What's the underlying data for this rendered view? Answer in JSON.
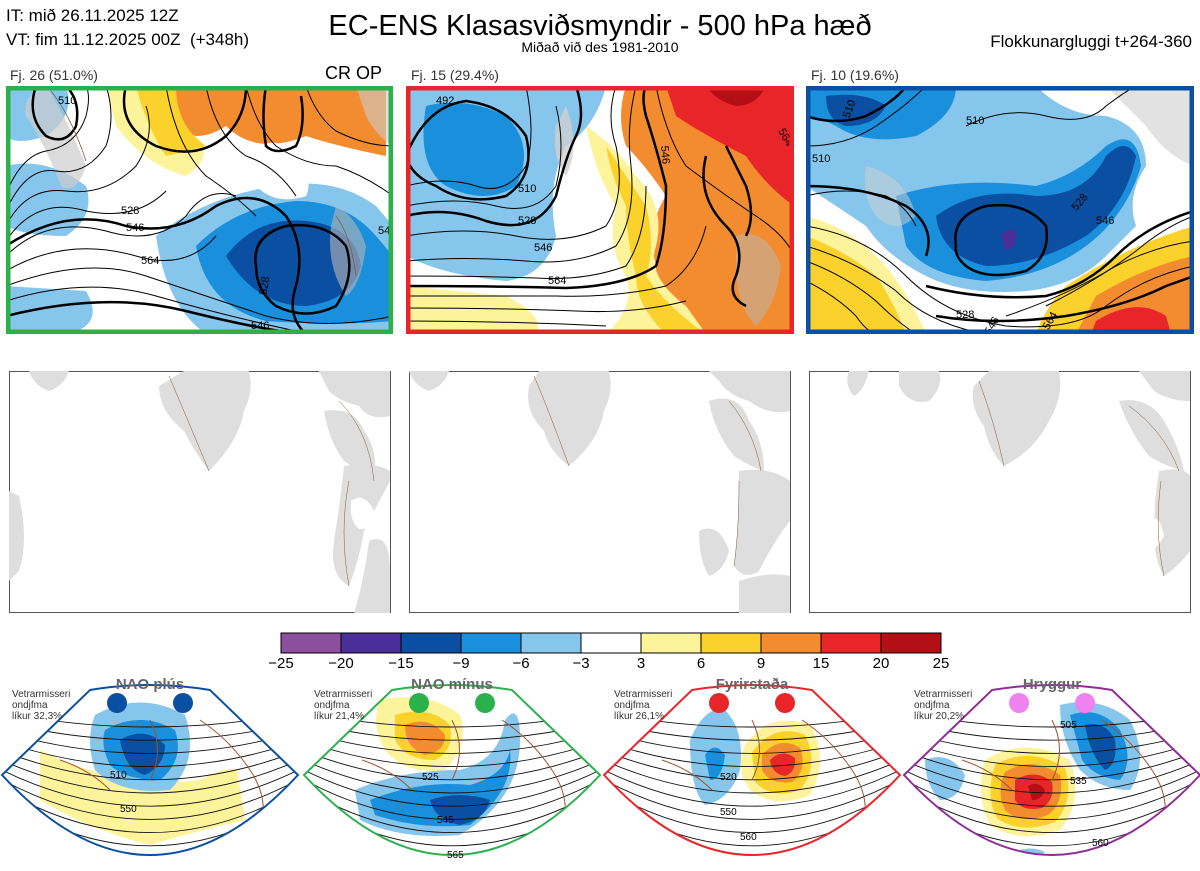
{
  "header": {
    "it_line": "IT: mið 26.11.2025 12Z",
    "vt_line": "VT: fim 11.12.2025 00Z  (+348h)",
    "title": "EC-ENS Klasasviðsmyndir - 500 hPa hæð",
    "subtitle": "Miðað við des 1981-2010",
    "window": "Flokkunargluggi t+264-360"
  },
  "clusters": [
    {
      "label": "Fj. 26 (51.0%)",
      "border_color": "#2ab14b",
      "contour_labels": [
        "510",
        "528",
        "546",
        "564",
        "528",
        "546",
        "546"
      ]
    },
    {
      "label": "Fj. 15 (29.4%)",
      "border_color": "#e8262a",
      "contour_labels": [
        "492",
        "510",
        "528",
        "546",
        "564",
        "546",
        "564"
      ]
    },
    {
      "label": "Fj. 10 (19.6%)",
      "border_color": "#0a4fa2",
      "contour_labels": [
        "510",
        "510",
        "528",
        "546",
        "528",
        "546",
        "564",
        "510"
      ]
    }
  ],
  "crop_label": "CR OP",
  "colorbar": {
    "ticks": [
      "−25",
      "−20",
      "−15",
      "−9",
      "−6",
      "−3",
      "3",
      "6",
      "9",
      "15",
      "20",
      "25"
    ],
    "colors": [
      "#8e4ea0",
      "#4a2f98",
      "#0a4fa2",
      "#1a8fdc",
      "#86c6ec",
      "#ffffff",
      "#fdf39a",
      "#fbd12c",
      "#f28c2e",
      "#e8262a",
      "#b50f16"
    ]
  },
  "regimes": [
    {
      "title": "NAO plús",
      "line1": "Vetrarmisseri",
      "line2": "ondjfma",
      "line3": "líkur 32,3%",
      "color": "#0a4fa2",
      "dot_color": "#0a4fa2",
      "labels": [
        "510",
        "550"
      ]
    },
    {
      "title": "NAO mínus",
      "line1": "Vetrarmisseri",
      "line2": "ondjfma",
      "line3": "líkur 21,4%",
      "color": "#2ab14b",
      "dot_color": "#2ab14b",
      "labels": [
        "525",
        "545",
        "565"
      ]
    },
    {
      "title": "Fyrirstaða",
      "line1": "Vetrarmisseri",
      "line2": "ondjfma",
      "line3": "líkur 26,1%",
      "color": "#e8262a",
      "dot_color": "#e8262a",
      "labels": [
        "520",
        "550",
        "560"
      ]
    },
    {
      "title": "Hryggur",
      "line1": "Vetrarmisseri",
      "line2": "ondjfma",
      "line3": "líkur 20,2%",
      "color": "#8e2d96",
      "dot_color": "#ee82ee",
      "labels": [
        "505",
        "535",
        "560"
      ]
    }
  ]
}
